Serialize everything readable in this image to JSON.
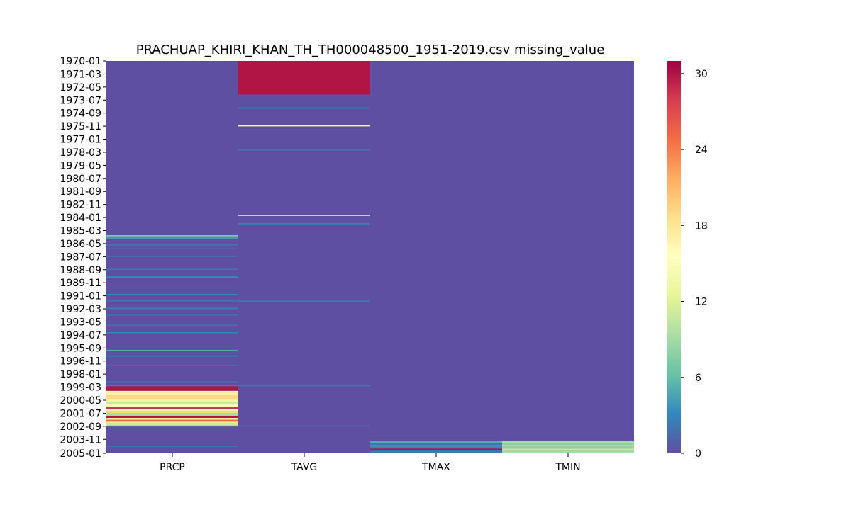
{
  "chart_data": {
    "type": "heatmap",
    "title": "PRACHUAP_KHIRI_KHAN_TH_TH000048500_1951-2019.csv missing_value",
    "xlabel": "",
    "ylabel": "",
    "columns": [
      "PRCP",
      "TAVG",
      "TMAX",
      "TMIN"
    ],
    "row_start": "1970-01",
    "row_end": "2005-01",
    "y_tick_labels": [
      "1970-01",
      "1971-03",
      "1972-05",
      "1973-07",
      "1974-09",
      "1975-11",
      "1977-01",
      "1978-03",
      "1979-05",
      "1980-07",
      "1981-09",
      "1982-11",
      "1984-01",
      "1985-03",
      "1986-05",
      "1987-07",
      "1988-09",
      "1989-11",
      "1991-01",
      "1992-03",
      "1993-05",
      "1994-07",
      "1995-09",
      "1996-11",
      "1998-01",
      "1999-03",
      "2000-05",
      "2001-07",
      "2002-09",
      "2003-11",
      "2005-01"
    ],
    "colorbar": {
      "min": 0,
      "max": 31,
      "ticks": [
        0,
        6,
        12,
        18,
        24,
        30
      ],
      "colormap": "Spectral_r"
    },
    "background_value": 0,
    "bands": [
      {
        "column": "TAVG",
        "from": "1970-01",
        "to": "1972-12",
        "value": 30
      },
      {
        "column": "TAVG",
        "from": "1974-03",
        "to": "1974-03",
        "value": 3
      },
      {
        "column": "TAVG",
        "from": "1975-10",
        "to": "1975-10",
        "value": 14
      },
      {
        "column": "TAVG",
        "from": "1977-12",
        "to": "1977-12",
        "value": 2
      },
      {
        "column": "TAVG",
        "from": "1983-10",
        "to": "1983-10",
        "value": 15
      },
      {
        "column": "TAVG",
        "from": "1984-07",
        "to": "1984-07",
        "value": 3
      },
      {
        "column": "TAVG",
        "from": "1991-06",
        "to": "1991-07",
        "value": 2
      },
      {
        "column": "TAVG",
        "from": "1999-01",
        "to": "1999-01",
        "value": 2
      },
      {
        "column": "TAVG",
        "from": "2002-08",
        "to": "2002-08",
        "value": 2
      },
      {
        "column": "PRCP",
        "from": "1985-08",
        "to": "1985-08",
        "value": 8
      },
      {
        "column": "PRCP",
        "from": "1985-10",
        "to": "1985-11",
        "value": 4
      },
      {
        "column": "PRCP",
        "from": "1986-06",
        "to": "1986-06",
        "value": 2
      },
      {
        "column": "PRCP",
        "from": "1986-10",
        "to": "1986-10",
        "value": 2
      },
      {
        "column": "PRCP",
        "from": "1987-06",
        "to": "1987-06",
        "value": 2
      },
      {
        "column": "PRCP",
        "from": "1988-08",
        "to": "1988-08",
        "value": 2
      },
      {
        "column": "PRCP",
        "from": "1989-04",
        "to": "1989-05",
        "value": 3
      },
      {
        "column": "PRCP",
        "from": "1990-11",
        "to": "1990-11",
        "value": 3
      },
      {
        "column": "PRCP",
        "from": "1991-06",
        "to": "1991-06",
        "value": 2
      },
      {
        "column": "PRCP",
        "from": "1992-02",
        "to": "1992-02",
        "value": 3
      },
      {
        "column": "PRCP",
        "from": "1992-09",
        "to": "1992-09",
        "value": 2
      },
      {
        "column": "PRCP",
        "from": "1993-08",
        "to": "1993-08",
        "value": 2
      },
      {
        "column": "PRCP",
        "from": "1994-04",
        "to": "1994-04",
        "value": 3
      },
      {
        "column": "PRCP",
        "from": "1995-11",
        "to": "1995-11",
        "value": 5
      },
      {
        "column": "PRCP",
        "from": "1996-05",
        "to": "1996-05",
        "value": 3
      },
      {
        "column": "PRCP",
        "from": "1997-03",
        "to": "1997-03",
        "value": 2
      },
      {
        "column": "PRCP",
        "from": "1998-09",
        "to": "1998-09",
        "value": 3
      },
      {
        "column": "PRCP",
        "from": "1999-01",
        "to": "1999-01",
        "value": 3
      },
      {
        "column": "PRCP",
        "from": "1999-02",
        "to": "1999-06",
        "value": 30
      },
      {
        "column": "PRCP",
        "from": "1999-07",
        "to": "1999-08",
        "value": 14
      },
      {
        "column": "PRCP",
        "from": "1999-09",
        "to": "1999-11",
        "value": 17
      },
      {
        "column": "PRCP",
        "from": "1999-12",
        "to": "2000-03",
        "value": 19
      },
      {
        "column": "PRCP",
        "from": "2000-04",
        "to": "2000-06",
        "value": 17
      },
      {
        "column": "PRCP",
        "from": "2000-07",
        "to": "2000-08",
        "value": 11
      },
      {
        "column": "PRCP",
        "from": "2000-09",
        "to": "2000-11",
        "value": 16
      },
      {
        "column": "PRCP",
        "from": "2000-12",
        "to": "2000-12",
        "value": 26
      },
      {
        "column": "PRCP",
        "from": "2001-01",
        "to": "2001-01",
        "value": 30
      },
      {
        "column": "PRCP",
        "from": "2001-02",
        "to": "2001-04",
        "value": 13
      },
      {
        "column": "PRCP",
        "from": "2001-05",
        "to": "2001-06",
        "value": 19
      },
      {
        "column": "PRCP",
        "from": "2001-07",
        "to": "2001-09",
        "value": 9
      },
      {
        "column": "PRCP",
        "from": "2001-10",
        "to": "2001-11",
        "value": 30
      },
      {
        "column": "PRCP",
        "from": "2001-12",
        "to": "2002-01",
        "value": 17
      },
      {
        "column": "PRCP",
        "from": "2002-02",
        "to": "2002-03",
        "value": 25
      },
      {
        "column": "PRCP",
        "from": "2002-04",
        "to": "2002-05",
        "value": 18
      },
      {
        "column": "PRCP",
        "from": "2002-06",
        "to": "2002-07",
        "value": 11
      },
      {
        "column": "PRCP",
        "from": "2002-08",
        "to": "2002-08",
        "value": 8
      },
      {
        "column": "PRCP",
        "from": "2004-06",
        "to": "2004-06",
        "value": 2
      },
      {
        "column": "TMAX",
        "from": "2004-01",
        "to": "2004-02",
        "value": 5
      },
      {
        "column": "TMAX",
        "from": "2004-03",
        "to": "2004-04",
        "value": 2
      },
      {
        "column": "TMAX",
        "from": "2004-05",
        "to": "2004-06",
        "value": 4
      },
      {
        "column": "TMAX",
        "from": "2004-07",
        "to": "2004-08",
        "value": 3
      },
      {
        "column": "TMAX",
        "from": "2004-09",
        "to": "2004-10",
        "value": 30
      },
      {
        "column": "TMAX",
        "from": "2004-11",
        "to": "2005-01",
        "value": 2
      },
      {
        "column": "TMIN",
        "from": "2004-01",
        "to": "2004-02",
        "value": 9
      },
      {
        "column": "TMIN",
        "from": "2004-03",
        "to": "2004-04",
        "value": 8
      },
      {
        "column": "TMIN",
        "from": "2004-05",
        "to": "2004-06",
        "value": 10
      },
      {
        "column": "TMIN",
        "from": "2004-07",
        "to": "2004-08",
        "value": 8
      },
      {
        "column": "TMIN",
        "from": "2004-09",
        "to": "2004-10",
        "value": 11
      },
      {
        "column": "TMIN",
        "from": "2004-11",
        "to": "2005-01",
        "value": 9
      }
    ]
  }
}
